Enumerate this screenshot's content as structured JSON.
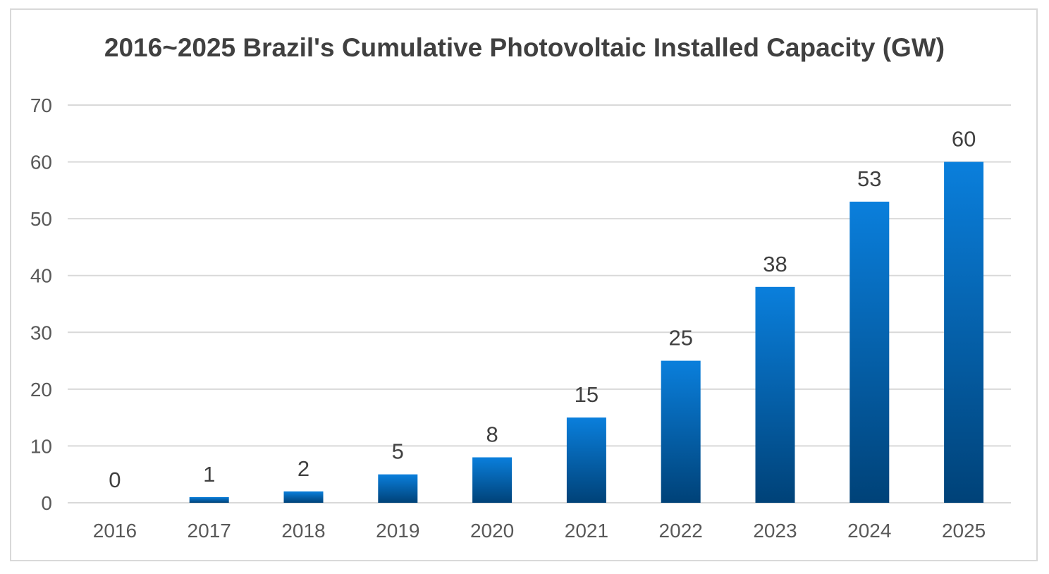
{
  "chart_data": {
    "type": "bar",
    "title": "2016~2025 Brazil's Cumulative Photovoltaic Installed Capacity (GW)",
    "categories": [
      "2016",
      "2017",
      "2018",
      "2019",
      "2020",
      "2021",
      "2022",
      "2023",
      "2024",
      "2025"
    ],
    "values": [
      0,
      1,
      2,
      5,
      8,
      15,
      25,
      38,
      53,
      60
    ],
    "data_labels": [
      "0",
      "1",
      "2",
      "5",
      "8",
      "15",
      "25",
      "38",
      "53",
      "60"
    ],
    "y_ticks": [
      "0",
      "10",
      "20",
      "30",
      "40",
      "50",
      "60",
      "70"
    ],
    "ylim": [
      0,
      70
    ],
    "grid": true,
    "legend": "none",
    "colors": {
      "bar_top": "#0a7fdc",
      "bar_bottom": "#004278",
      "grid": "#d9d9d9",
      "tick_text": "#595959",
      "label_text": "#404040"
    }
  }
}
